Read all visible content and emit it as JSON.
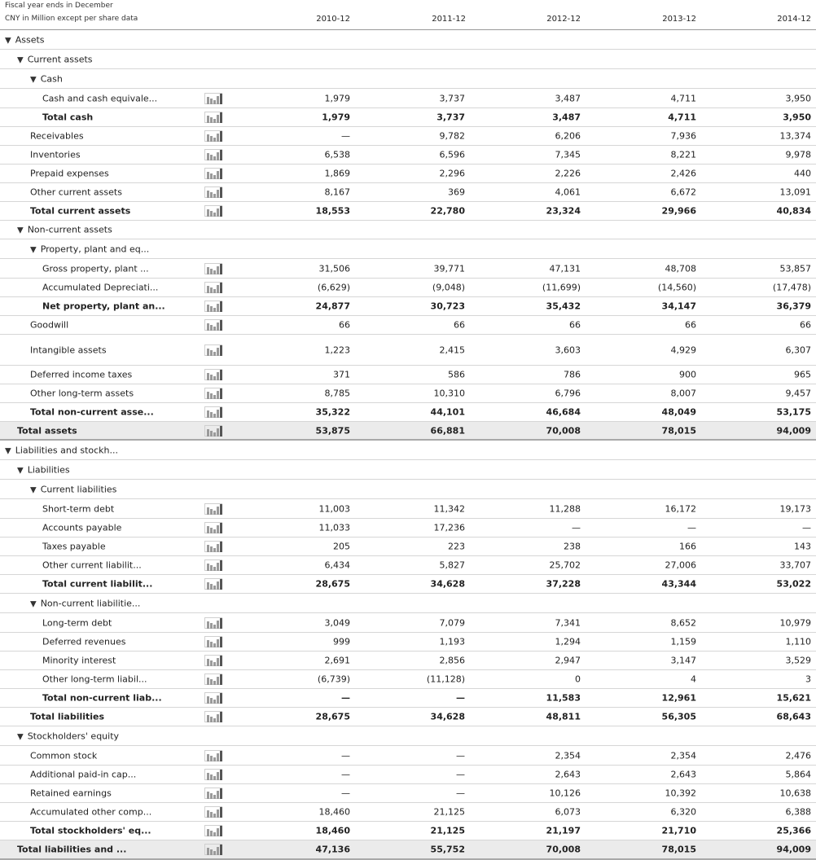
{
  "header": {
    "fiscal_note": "Fiscal year ends in December",
    "units_note": "CNY in Million except per share data",
    "years": [
      "2010-12",
      "2011-12",
      "2012-12",
      "2013-12",
      "2014-12"
    ]
  },
  "rows": [
    {
      "label": "Assets",
      "indent": 0,
      "section": true
    },
    {
      "label": "Current assets",
      "indent": 1,
      "section": true
    },
    {
      "label": "Cash",
      "indent": 2,
      "section": true
    },
    {
      "label": "Cash and cash equivale...",
      "indent": 3,
      "values": [
        "1,979",
        "3,737",
        "3,487",
        "4,711",
        "3,950"
      ]
    },
    {
      "label": "Total cash",
      "indent": 3,
      "bold": true,
      "values": [
        "1,979",
        "3,737",
        "3,487",
        "4,711",
        "3,950"
      ]
    },
    {
      "label": "Receivables",
      "indent": 2,
      "values": [
        "—",
        "9,782",
        "6,206",
        "7,936",
        "13,374"
      ]
    },
    {
      "label": "Inventories",
      "indent": 2,
      "values": [
        "6,538",
        "6,596",
        "7,345",
        "8,221",
        "9,978"
      ]
    },
    {
      "label": "Prepaid expenses",
      "indent": 2,
      "values": [
        "1,869",
        "2,296",
        "2,226",
        "2,426",
        "440"
      ]
    },
    {
      "label": "Other current assets",
      "indent": 2,
      "values": [
        "8,167",
        "369",
        "4,061",
        "6,672",
        "13,091"
      ]
    },
    {
      "label": "Total current assets",
      "indent": 2,
      "bold": true,
      "values": [
        "18,553",
        "22,780",
        "23,324",
        "29,966",
        "40,834"
      ]
    },
    {
      "label": "Non-current assets",
      "indent": 1,
      "section": true
    },
    {
      "label": "Property, plant and eq...",
      "indent": 2,
      "section": true
    },
    {
      "label": "Gross property, plant ...",
      "indent": 3,
      "values": [
        "31,506",
        "39,771",
        "47,131",
        "48,708",
        "53,857"
      ]
    },
    {
      "label": "Accumulated Depreciati...",
      "indent": 3,
      "values": [
        "(6,629)",
        "(9,048)",
        "(11,699)",
        "(14,560)",
        "(17,478)"
      ]
    },
    {
      "label": "Net property, plant an...",
      "indent": 3,
      "bold": true,
      "values": [
        "24,877",
        "30,723",
        "35,432",
        "34,147",
        "36,379"
      ]
    },
    {
      "label": "Goodwill",
      "indent": 2,
      "values": [
        "66",
        "66",
        "66",
        "66",
        "66"
      ]
    },
    {
      "label": "Intangible assets",
      "indent": 2,
      "values": [
        "1,223",
        "2,415",
        "3,603",
        "4,929",
        "6,307"
      ]
    },
    {
      "label": "Deferred income taxes",
      "indent": 2,
      "values": [
        "371",
        "586",
        "786",
        "900",
        "965"
      ]
    },
    {
      "label": "Other long-term assets",
      "indent": 2,
      "values": [
        "8,785",
        "10,310",
        "6,796",
        "8,007",
        "9,457"
      ]
    },
    {
      "label": "Total non-current asse...",
      "indent": 2,
      "bold": true,
      "values": [
        "35,322",
        "44,101",
        "46,684",
        "48,049",
        "53,175"
      ]
    },
    {
      "label": "Total assets",
      "indent": 1,
      "bold": true,
      "grey": true,
      "values": [
        "53,875",
        "66,881",
        "70,008",
        "78,015",
        "94,009"
      ]
    },
    {
      "label": "Liabilities and stockh...",
      "indent": 0,
      "section": true
    },
    {
      "label": "Liabilities",
      "indent": 1,
      "section": true
    },
    {
      "label": "Current liabilities",
      "indent": 2,
      "section": true
    },
    {
      "label": "Short-term debt",
      "indent": 3,
      "values": [
        "11,003",
        "11,342",
        "11,288",
        "16,172",
        "19,173"
      ]
    },
    {
      "label": "Accounts payable",
      "indent": 3,
      "values": [
        "11,033",
        "17,236",
        "—",
        "—",
        "—"
      ]
    },
    {
      "label": "Taxes payable",
      "indent": 3,
      "values": [
        "205",
        "223",
        "238",
        "166",
        "143"
      ]
    },
    {
      "label": "Other current liabilit...",
      "indent": 3,
      "values": [
        "6,434",
        "5,827",
        "25,702",
        "27,006",
        "33,707"
      ]
    },
    {
      "label": "Total current liabilit...",
      "indent": 3,
      "bold": true,
      "values": [
        "28,675",
        "34,628",
        "37,228",
        "43,344",
        "53,022"
      ]
    },
    {
      "label": "Non-current liabilitie...",
      "indent": 2,
      "section": true
    },
    {
      "label": "Long-term debt",
      "indent": 3,
      "values": [
        "3,049",
        "7,079",
        "7,341",
        "8,652",
        "10,979"
      ]
    },
    {
      "label": "Deferred revenues",
      "indent": 3,
      "values": [
        "999",
        "1,193",
        "1,294",
        "1,159",
        "1,110"
      ]
    },
    {
      "label": "Minority interest",
      "indent": 3,
      "values": [
        "2,691",
        "2,856",
        "2,947",
        "3,147",
        "3,529"
      ]
    },
    {
      "label": "Other long-term liabil...",
      "indent": 3,
      "values": [
        "(6,739)",
        "(11,128)",
        "0",
        "4",
        "3"
      ]
    },
    {
      "label": "Total non-current liab...",
      "indent": 3,
      "bold": true,
      "values": [
        "—",
        "—",
        "11,583",
        "12,961",
        "15,621"
      ]
    },
    {
      "label": "Total liabilities",
      "indent": 2,
      "bold": true,
      "values": [
        "28,675",
        "34,628",
        "48,811",
        "56,305",
        "68,643"
      ]
    },
    {
      "label": "Stockholders' equity",
      "indent": 1,
      "section": true
    },
    {
      "label": "Common stock",
      "indent": 2,
      "values": [
        "—",
        "—",
        "2,354",
        "2,354",
        "2,476"
      ]
    },
    {
      "label": "Additional paid-in cap...",
      "indent": 2,
      "values": [
        "—",
        "—",
        "2,643",
        "2,643",
        "5,864"
      ]
    },
    {
      "label": "Retained earnings",
      "indent": 2,
      "values": [
        "—",
        "—",
        "10,126",
        "10,392",
        "10,638"
      ]
    },
    {
      "label": "Accumulated other comp...",
      "indent": 2,
      "values": [
        "18,460",
        "21,125",
        "6,073",
        "6,320",
        "6,388"
      ]
    },
    {
      "label": "Total stockholders' eq...",
      "indent": 2,
      "bold": true,
      "values": [
        "18,460",
        "21,125",
        "21,197",
        "21,710",
        "25,366"
      ]
    },
    {
      "label": "Total liabilities and ...",
      "indent": 1,
      "bold": true,
      "grey": true,
      "values": [
        "47,136",
        "55,752",
        "70,008",
        "78,015",
        "94,009"
      ]
    }
  ]
}
